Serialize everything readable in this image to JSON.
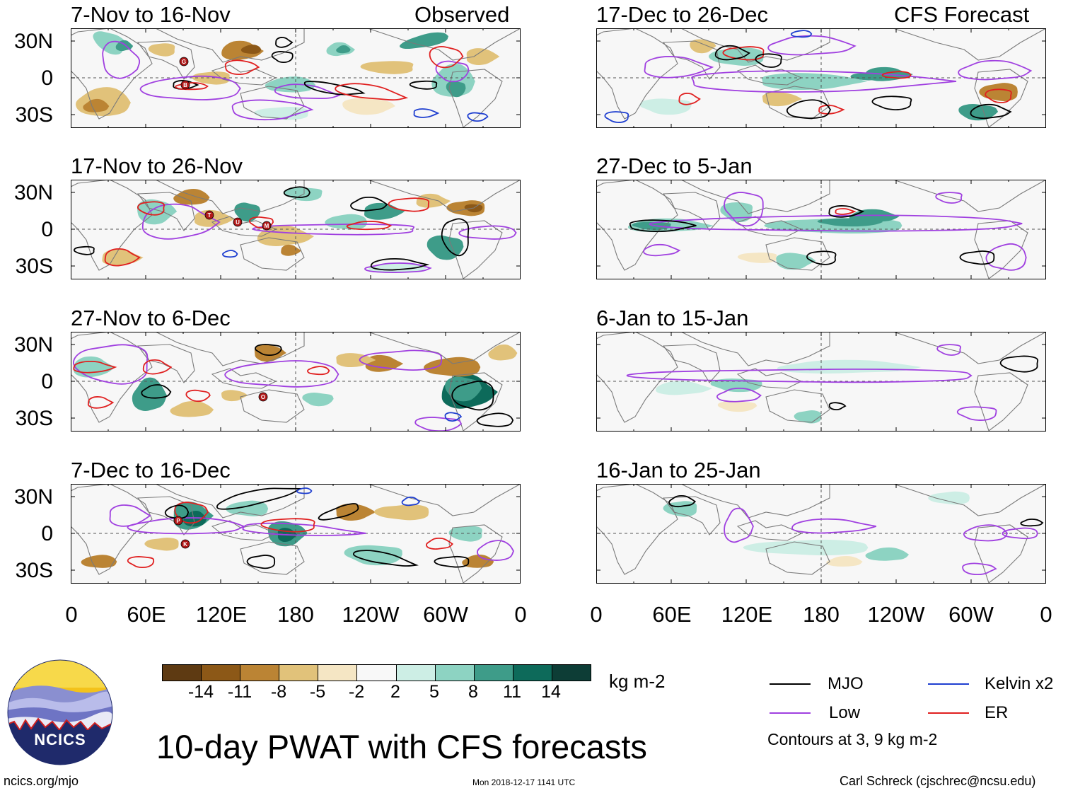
{
  "panels_left": [
    {
      "title": "7-Nov to 16-Nov",
      "label_right": "Observed"
    },
    {
      "title": "17-Nov to 26-Nov",
      "label_right": ""
    },
    {
      "title": "27-Nov to 6-Dec",
      "label_right": ""
    },
    {
      "title": "7-Dec to 16-Dec",
      "label_right": ""
    }
  ],
  "panels_right": [
    {
      "title": "17-Dec to 26-Dec",
      "label_right": "CFS Forecast"
    },
    {
      "title": "27-Dec to 5-Jan",
      "label_right": ""
    },
    {
      "title": "6-Jan to 15-Jan",
      "label_right": ""
    },
    {
      "title": "16-Jan to 25-Jan",
      "label_right": ""
    }
  ],
  "lat_labels": [
    "30N",
    "0",
    "30S"
  ],
  "lon_labels": [
    "0",
    "60E",
    "120E",
    "180",
    "120W",
    "60W",
    "0"
  ],
  "colorbar": {
    "ticks": [
      "-14",
      "-11",
      "-8",
      "-5",
      "-2",
      "2",
      "5",
      "8",
      "11",
      "14"
    ],
    "colors": [
      "#5e3a12",
      "#8c5817",
      "#bb8434",
      "#e1c27a",
      "#f5e6c4",
      "#f8f8f8",
      "#cdeee5",
      "#8dd3c2",
      "#3e9c89",
      "#0d6a5a",
      "#0d3d36"
    ],
    "units": "kg m-2"
  },
  "legend": {
    "items": [
      {
        "label": "MJO",
        "color": "#000000"
      },
      {
        "label": "Kelvin x2",
        "color": "#1f3fd0"
      },
      {
        "label": "Low",
        "color": "#a040e0"
      },
      {
        "label": "ER",
        "color": "#e02020"
      }
    ],
    "note": "Contours at 3, 9 kg m-2"
  },
  "logo_text": "NCICS",
  "main_title": "10-day PWAT with CFS forecasts",
  "footer": {
    "left": "ncics.org/mjo",
    "center": "Mon 2018-12-17 1141 UTC",
    "right": "Carl Schreck (cjschrec@ncsu.edu)"
  },
  "storm_markers": [
    {
      "label": "G"
    },
    {
      "label": "B"
    },
    {
      "label": "T"
    },
    {
      "label": "U"
    },
    {
      "label": "M"
    },
    {
      "label": "O"
    },
    {
      "label": "P"
    },
    {
      "label": "K"
    }
  ]
}
